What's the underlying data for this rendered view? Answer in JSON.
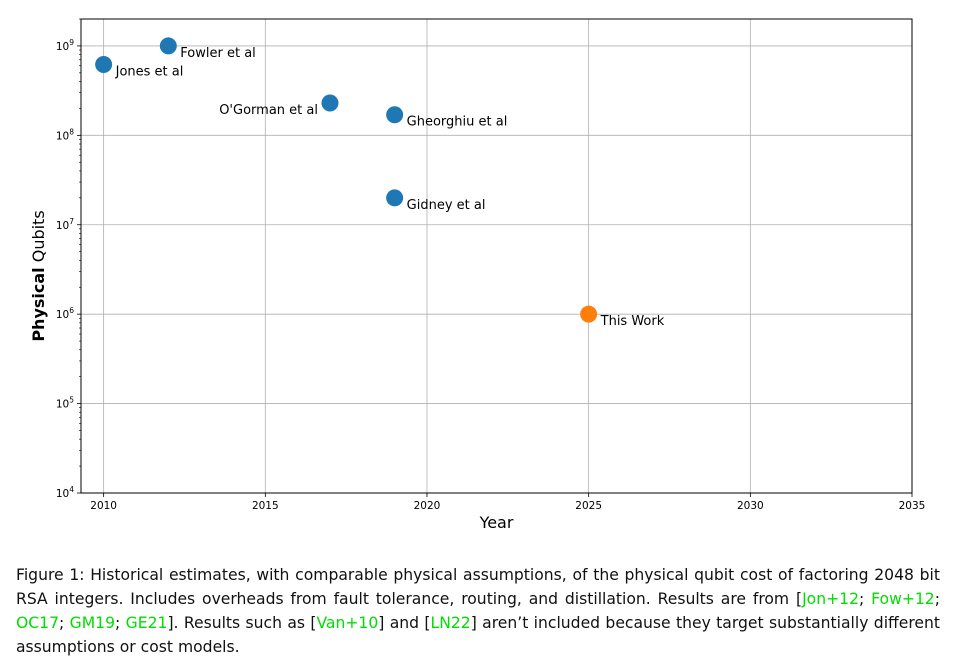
{
  "chart_data": {
    "type": "scatter",
    "xlabel": "Year",
    "ylabel_bold": "Physical",
    "ylabel_rest": " Qubits",
    "xlim": [
      2009.3,
      2035
    ],
    "ylim": [
      10000,
      2000000000
    ],
    "yscale": "log",
    "grid": true,
    "x_ticks": [
      2010,
      2015,
      2020,
      2025,
      2030,
      2035
    ],
    "x_tick_labels": [
      "2010",
      "2015",
      "2020",
      "2025",
      "2030",
      "2035"
    ],
    "y_ticks": [
      {
        "value": 10000,
        "base": "10",
        "exp": "4"
      },
      {
        "value": 100000,
        "base": "10",
        "exp": "5"
      },
      {
        "value": 1000000,
        "base": "10",
        "exp": "6"
      },
      {
        "value": 10000000,
        "base": "10",
        "exp": "7"
      },
      {
        "value": 100000000,
        "base": "10",
        "exp": "8"
      },
      {
        "value": 1000000000,
        "base": "10",
        "exp": "9"
      }
    ],
    "points": [
      {
        "label": "Jones et al",
        "x": 2010,
        "y": 620000000,
        "color": "#1f77b4"
      },
      {
        "label": "Fowler et al",
        "x": 2012,
        "y": 1000000000,
        "color": "#1f77b4"
      },
      {
        "label": "O'Gorman et al",
        "x": 2017,
        "y": 230000000,
        "color": "#1f77b4",
        "label_side": "left"
      },
      {
        "label": "Gheorghiu et al",
        "x": 2019,
        "y": 170000000,
        "color": "#1f77b4"
      },
      {
        "label": "Gidney et al",
        "x": 2019,
        "y": 20000000,
        "color": "#1f77b4"
      },
      {
        "label": "This Work",
        "x": 2025,
        "y": 1000000,
        "color": "#ff7f0e"
      }
    ]
  },
  "caption": {
    "text1": "Figure 1:  Historical estimates, with comparable physical assumptions, of the physical qubit cost of factoring 2048 bit RSA integers.  Includes overheads from fault tolerance, routing, and distillation.  Results are from [",
    "cite1": "Jon+12",
    "sep1": "; ",
    "cite2": "Fow+12",
    "sep2": "; ",
    "cite3": "OC17",
    "sep3": "; ",
    "cite4": "GM19",
    "sep4": "; ",
    "cite5": "GE21",
    "text2": "].  Results such as [",
    "cite6": "Van+10",
    "text3": "] and [",
    "cite7": "LN22",
    "text4": "] aren’t included because they target substantially different assumptions or cost models."
  }
}
